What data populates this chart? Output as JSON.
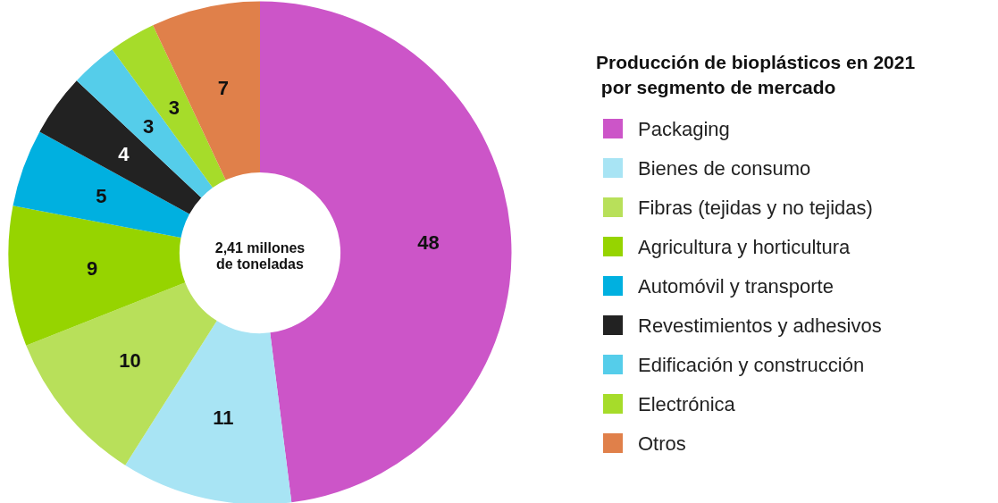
{
  "chart_data": {
    "type": "donut",
    "title": "Producción de bioplásticos en 2021 por segmento de mercado",
    "categories": [
      "Packaging",
      "Bienes de consumo",
      "Fibras (tejidas y no tejidas)",
      "Agricultura y horticultura",
      "Automóvil y transporte",
      "Revestimientos y adhesivos",
      "Edificación y construcción",
      "Electrónica",
      "Otros"
    ],
    "values": [
      48,
      11,
      10,
      9,
      5,
      4,
      3,
      3,
      7
    ],
    "colors": [
      "#cc55c8",
      "#a8e4f4",
      "#b8e05a",
      "#96d400",
      "#00b0e0",
      "#222222",
      "#55cdea",
      "#a6dc2a",
      "#e0804a"
    ],
    "data_labels": true,
    "legend": "right",
    "annotations": [
      "2,41 millones\nde toneladas"
    ]
  }
}
